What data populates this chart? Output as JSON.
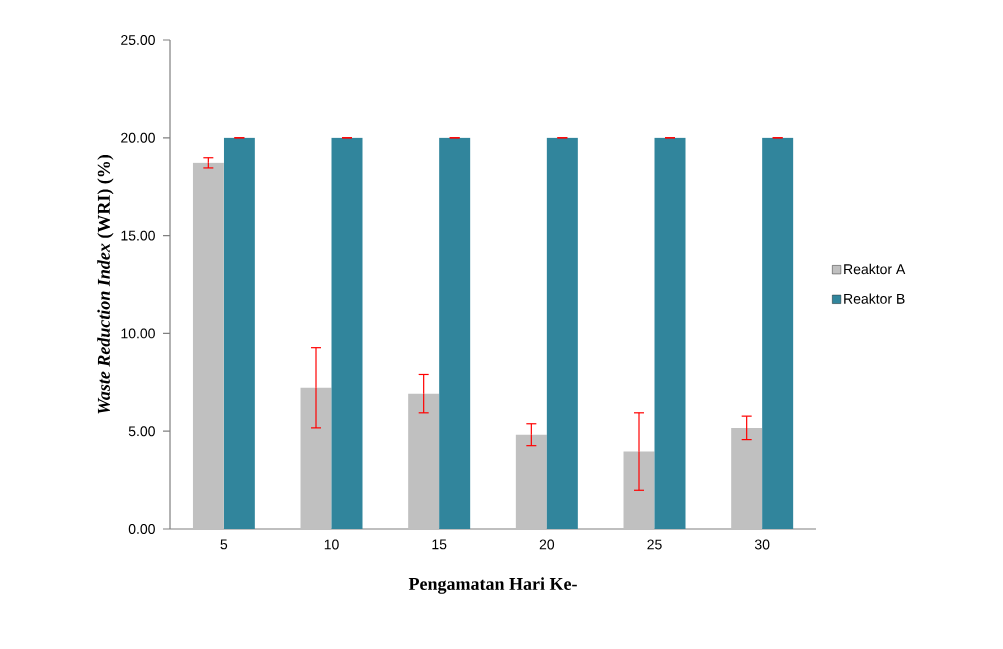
{
  "chart_data": {
    "type": "bar",
    "xlabel": "Pengamatan Hari Ke-",
    "ylabel": "*Waste Reduction Index* (WRI) (%)",
    "categories": [
      "5",
      "10",
      "15",
      "20",
      "25",
      "30"
    ],
    "series": [
      {
        "name": "Reaktor A",
        "color": "#c0c0c0",
        "values": [
          18.72,
          7.22,
          6.92,
          4.82,
          3.96,
          5.17
        ],
        "errors": [
          0.26,
          2.05,
          0.98,
          0.56,
          1.98,
          0.6
        ]
      },
      {
        "name": "Reaktor B",
        "color": "#31859c",
        "values": [
          20,
          20,
          20,
          20,
          20,
          20
        ],
        "errors": [
          0,
          0,
          0,
          0,
          0,
          0
        ]
      }
    ],
    "ylim": [
      0,
      25
    ],
    "yticks": [
      {
        "value": 0,
        "label": "0.00"
      },
      {
        "value": 5,
        "label": "5.00"
      },
      {
        "value": 10,
        "label": "10.00"
      },
      {
        "value": 15,
        "label": "15.00"
      },
      {
        "value": 20,
        "label": "20.00"
      },
      {
        "value": 25,
        "label": "25.00"
      }
    ],
    "grid": false,
    "legend": "right"
  }
}
